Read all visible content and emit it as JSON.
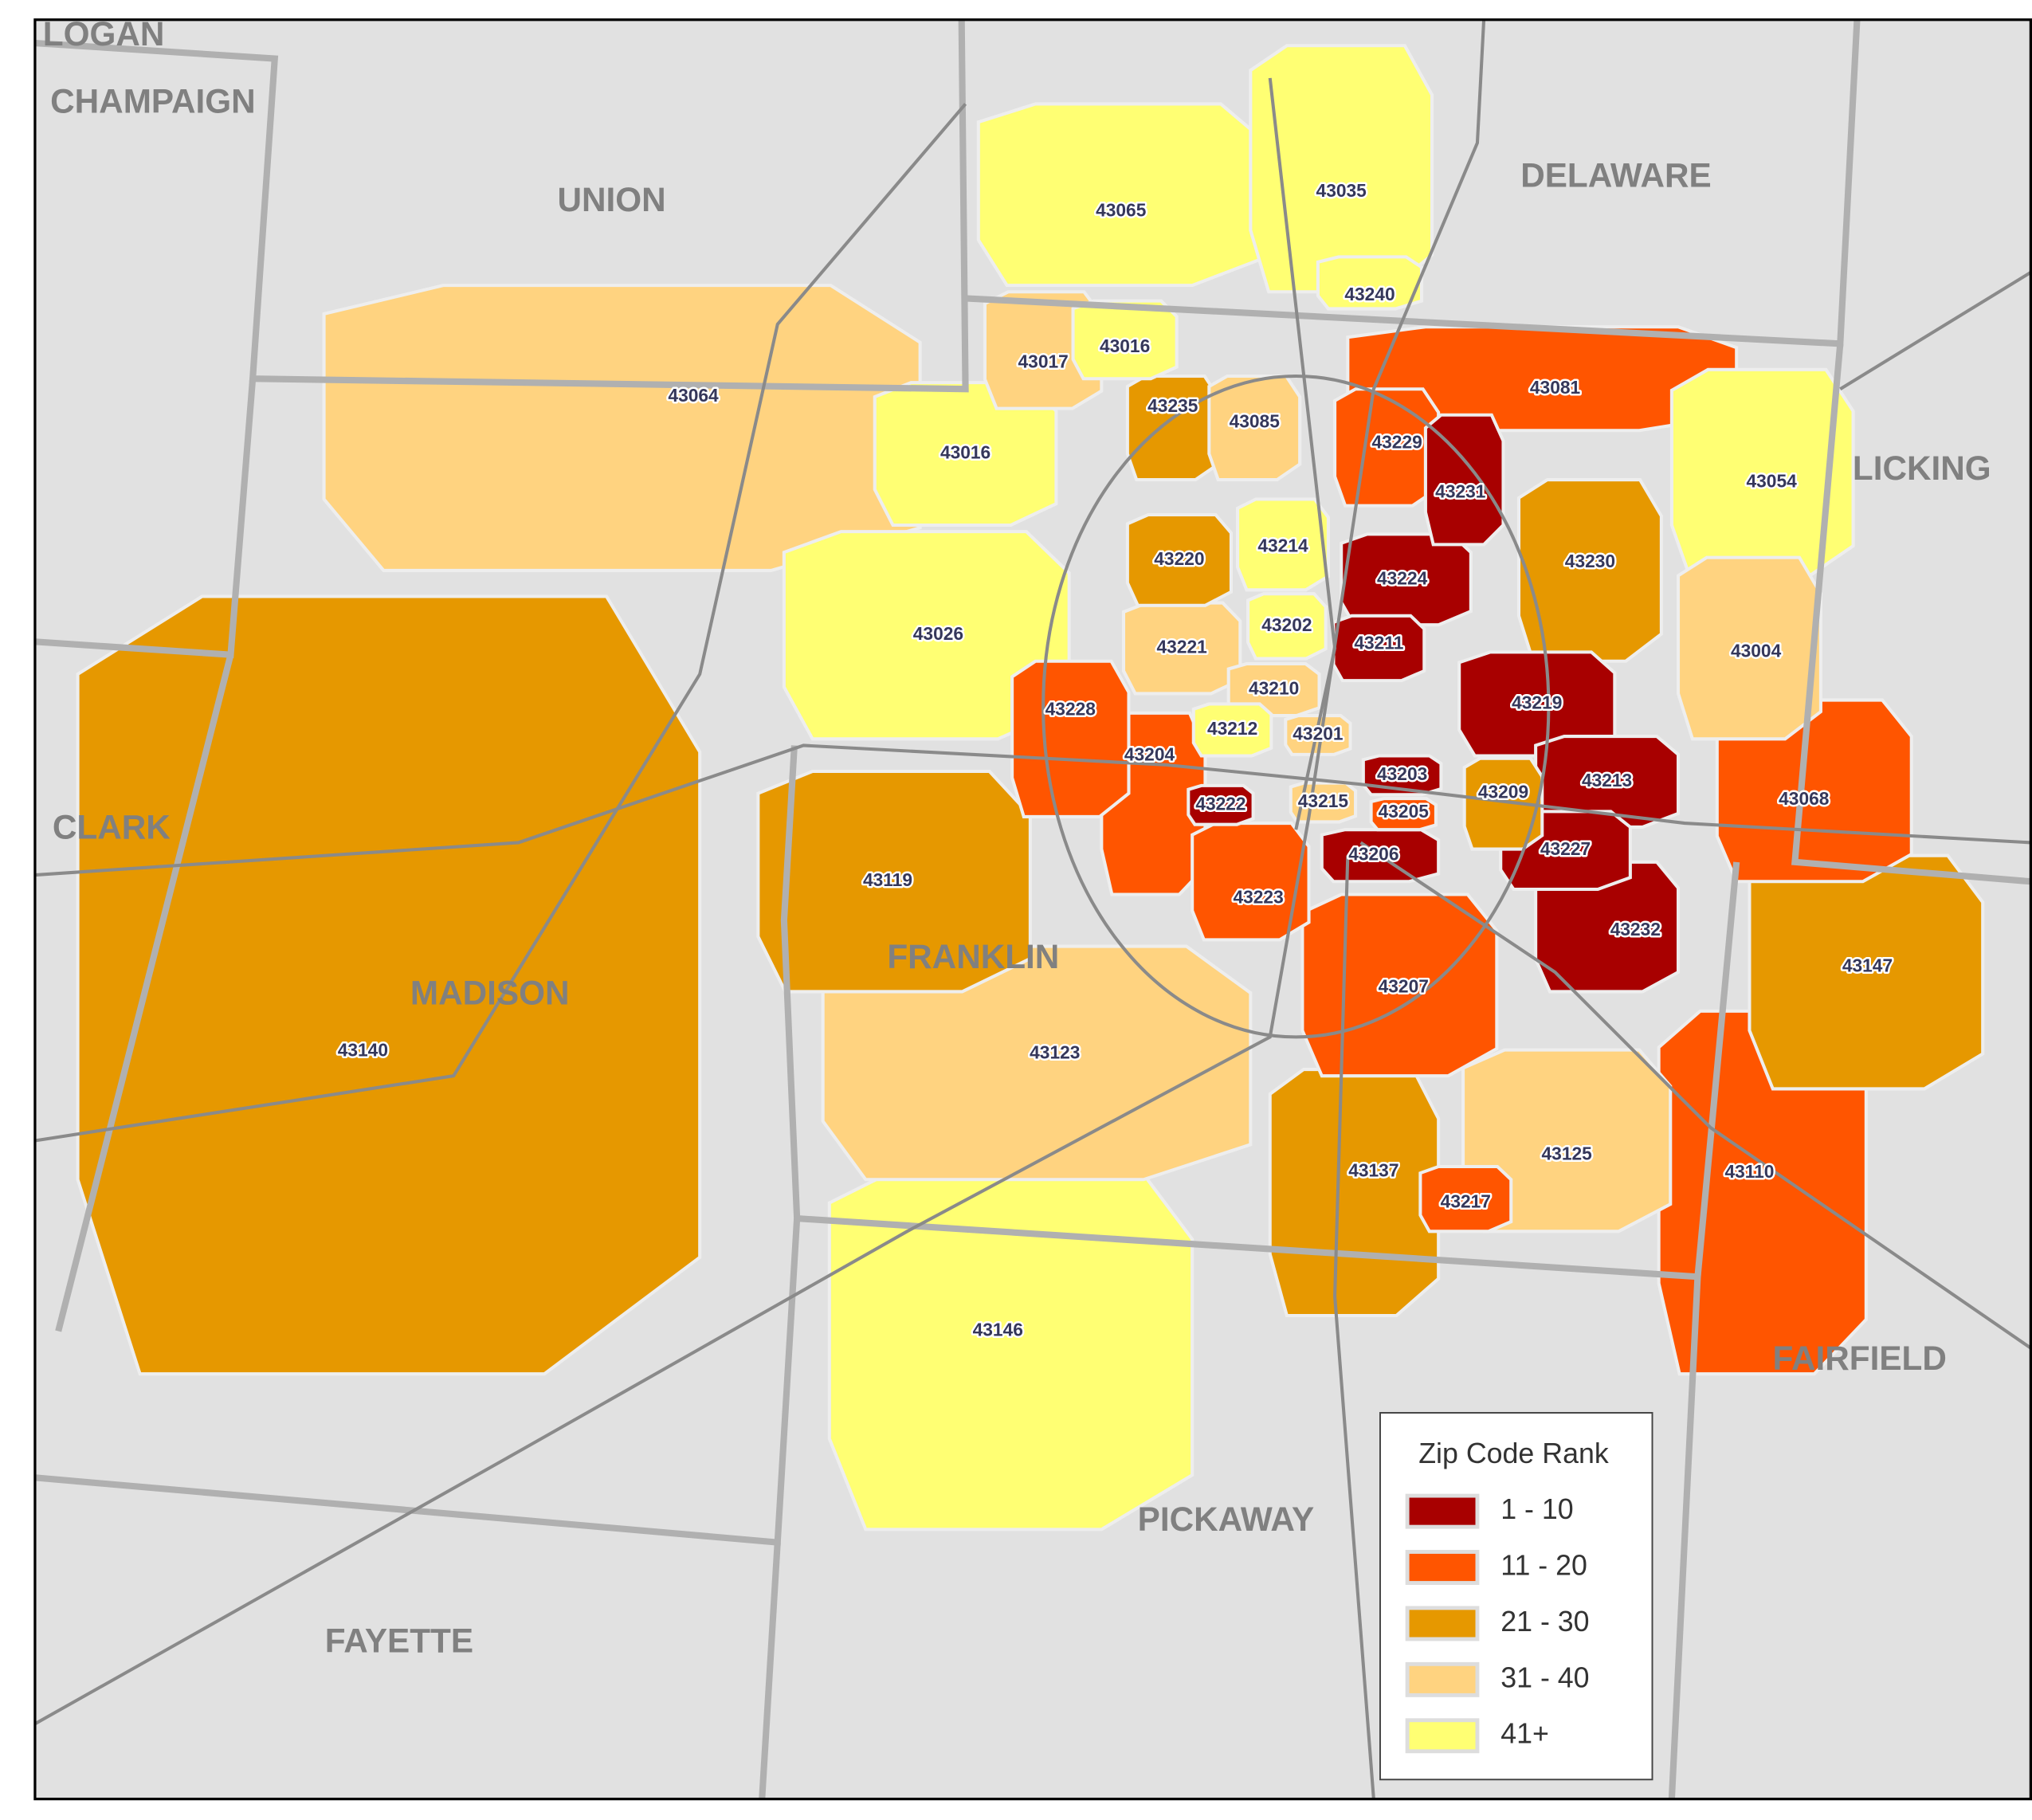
{
  "map": {
    "counties": [
      "LOGAN",
      "CHAMPAIGN",
      "UNION",
      "DELAWARE",
      "LICKING",
      "CLARK",
      "MADISON",
      "FRANKLIN",
      "FAIRFIELD",
      "PICKAWAY",
      "FAYETTE"
    ],
    "legend": {
      "title": "Zip Code Rank",
      "items": [
        {
          "label": "1 - 10",
          "color": "#a80000"
        },
        {
          "label": "11 - 20",
          "color": "#ff5500"
        },
        {
          "label": "21 - 30",
          "color": "#e69800"
        },
        {
          "label": "31 - 40",
          "color": "#ffd380"
        },
        {
          "label": "41+",
          "color": "#ffff73"
        }
      ]
    },
    "zips": [
      {
        "label": "43065",
        "color": "#ffff73"
      },
      {
        "label": "43035",
        "color": "#ffff73"
      },
      {
        "label": "43240",
        "color": "#ffff73"
      },
      {
        "label": "43081",
        "color": "#ff5500"
      },
      {
        "label": "43017",
        "color": "#ffd380"
      },
      {
        "label": "43016",
        "color": "#ffff73"
      },
      {
        "label": "43064",
        "color": "#ffd380"
      },
      {
        "label": "43235",
        "color": "#e69800"
      },
      {
        "label": "43085",
        "color": "#ffd380"
      },
      {
        "label": "43229",
        "color": "#ff5500"
      },
      {
        "label": "43016",
        "color": "#ffff73"
      },
      {
        "label": "43231",
        "color": "#a80000"
      },
      {
        "label": "43054",
        "color": "#ffff73"
      },
      {
        "label": "43230",
        "color": "#e69800"
      },
      {
        "label": "43220",
        "color": "#e69800"
      },
      {
        "label": "43214",
        "color": "#ffff73"
      },
      {
        "label": "43224",
        "color": "#a80000"
      },
      {
        "label": "43026",
        "color": "#ffff73"
      },
      {
        "label": "43221",
        "color": "#ffd380"
      },
      {
        "label": "43202",
        "color": "#ffff73"
      },
      {
        "label": "43211",
        "color": "#a80000"
      },
      {
        "label": "43004",
        "color": "#ffd380"
      },
      {
        "label": "43210",
        "color": "#ffd380"
      },
      {
        "label": "43219",
        "color": "#a80000"
      },
      {
        "label": "43228",
        "color": "#ff5500"
      },
      {
        "label": "43212",
        "color": "#ffff73"
      },
      {
        "label": "43201",
        "color": "#ffd380"
      },
      {
        "label": "43204",
        "color": "#ff5500"
      },
      {
        "label": "43203",
        "color": "#a80000"
      },
      {
        "label": "43213",
        "color": "#a80000"
      },
      {
        "label": "43209",
        "color": "#e69800"
      },
      {
        "label": "43068",
        "color": "#ff5500"
      },
      {
        "label": "43222",
        "color": "#a80000"
      },
      {
        "label": "43215",
        "color": "#ffd380"
      },
      {
        "label": "43205",
        "color": "#ff5500"
      },
      {
        "label": "43206",
        "color": "#a80000"
      },
      {
        "label": "43227",
        "color": "#a80000"
      },
      {
        "label": "43119",
        "color": "#e69800"
      },
      {
        "label": "43223",
        "color": "#ff5500"
      },
      {
        "label": "43232",
        "color": "#a80000"
      },
      {
        "label": "43147",
        "color": "#e69800"
      },
      {
        "label": "43207",
        "color": "#ff5500"
      },
      {
        "label": "43140",
        "color": "#e69800"
      },
      {
        "label": "43123",
        "color": "#ffd380"
      },
      {
        "label": "43125",
        "color": "#ffd380"
      },
      {
        "label": "43137",
        "color": "#e69800"
      },
      {
        "label": "43110",
        "color": "#ff5500"
      },
      {
        "label": "43217",
        "color": "#ff5500"
      },
      {
        "label": "43146",
        "color": "#ffff73"
      }
    ]
  }
}
